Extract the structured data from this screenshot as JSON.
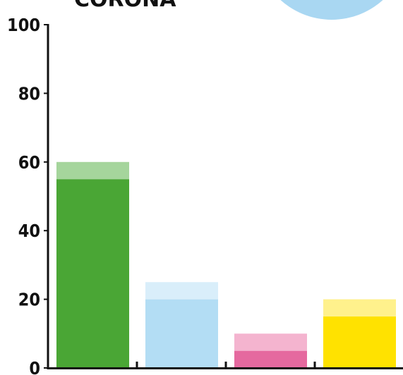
{
  "chart_data": {
    "type": "bar",
    "title": "CORONA",
    "xlabel": "",
    "ylabel": "",
    "ylim": [
      0,
      100
    ],
    "yticks": [
      0,
      20,
      40,
      60,
      80,
      100
    ],
    "categories": [
      "",
      "",
      "",
      ""
    ],
    "series": [
      {
        "values": [
          55,
          20,
          5,
          15
        ]
      },
      {
        "values": [
          5,
          5,
          5,
          5
        ]
      }
    ],
    "stacked": true,
    "colors": {
      "base": [
        "#4aa635",
        "#b3ddf4",
        "#e5699f",
        "#ffe200"
      ],
      "top": [
        "#a5d59c",
        "#d9eefa",
        "#f4b4cf",
        "#fff18c"
      ]
    },
    "grid": false,
    "legend": "none"
  },
  "decoration": {
    "circle_color": "#a9d7f2"
  }
}
